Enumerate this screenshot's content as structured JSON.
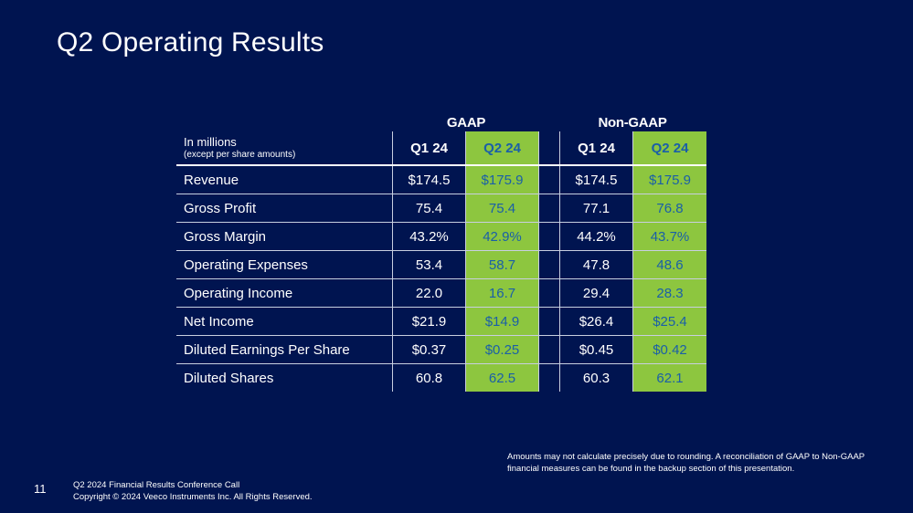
{
  "slide": {
    "title": "Q2 Operating Results",
    "page_number": "11",
    "footer_line1": "Q2 2024 Financial Results Conference Call",
    "footer_line2": "Copyright © 2024 Veeco Instruments Inc. All Rights Reserved.",
    "footnote": "Amounts may not calculate precisely due to rounding.  A reconciliation of GAAP to Non-GAAP financial measures can be found in the backup section of this presentation."
  },
  "table": {
    "group_gaap": "GAAP",
    "group_nongaap": "Non-GAAP",
    "header_label": "In millions",
    "header_sublabel": "(except per share amounts)",
    "columns": [
      "Q1 24",
      "Q2 24",
      "Q1 24",
      "Q2 24"
    ],
    "rows": [
      {
        "label": "Revenue",
        "gaap_q1": "$174.5",
        "gaap_q2": "$175.9",
        "ng_q1": "$174.5",
        "ng_q2": "$175.9"
      },
      {
        "label": "Gross Profit",
        "gaap_q1": "75.4",
        "gaap_q2": "75.4",
        "ng_q1": "77.1",
        "ng_q2": "76.8"
      },
      {
        "label": "Gross Margin",
        "gaap_q1": "43.2%",
        "gaap_q2": "42.9%",
        "ng_q1": "44.2%",
        "ng_q2": "43.7%"
      },
      {
        "label": "Operating Expenses",
        "gaap_q1": "53.4",
        "gaap_q2": "58.7",
        "ng_q1": "47.8",
        "ng_q2": "48.6"
      },
      {
        "label": "Operating Income",
        "gaap_q1": "22.0",
        "gaap_q2": "16.7",
        "ng_q1": "29.4",
        "ng_q2": "28.3"
      },
      {
        "label": "Net Income",
        "gaap_q1": "$21.9",
        "gaap_q2": "$14.9",
        "ng_q1": "$26.4",
        "ng_q2": "$25.4"
      },
      {
        "label": "Diluted Earnings Per Share",
        "gaap_q1": "$0.37",
        "gaap_q2": "$0.25",
        "ng_q1": "$0.45",
        "ng_q2": "$0.42"
      },
      {
        "label": "Diluted Shares",
        "gaap_q1": "60.8",
        "gaap_q2": "62.5",
        "ng_q1": "60.3",
        "ng_q2": "62.1"
      }
    ]
  },
  "colors": {
    "background": "#001450",
    "highlight": "#8dc63f",
    "highlight_text": "#1a5fa8"
  }
}
